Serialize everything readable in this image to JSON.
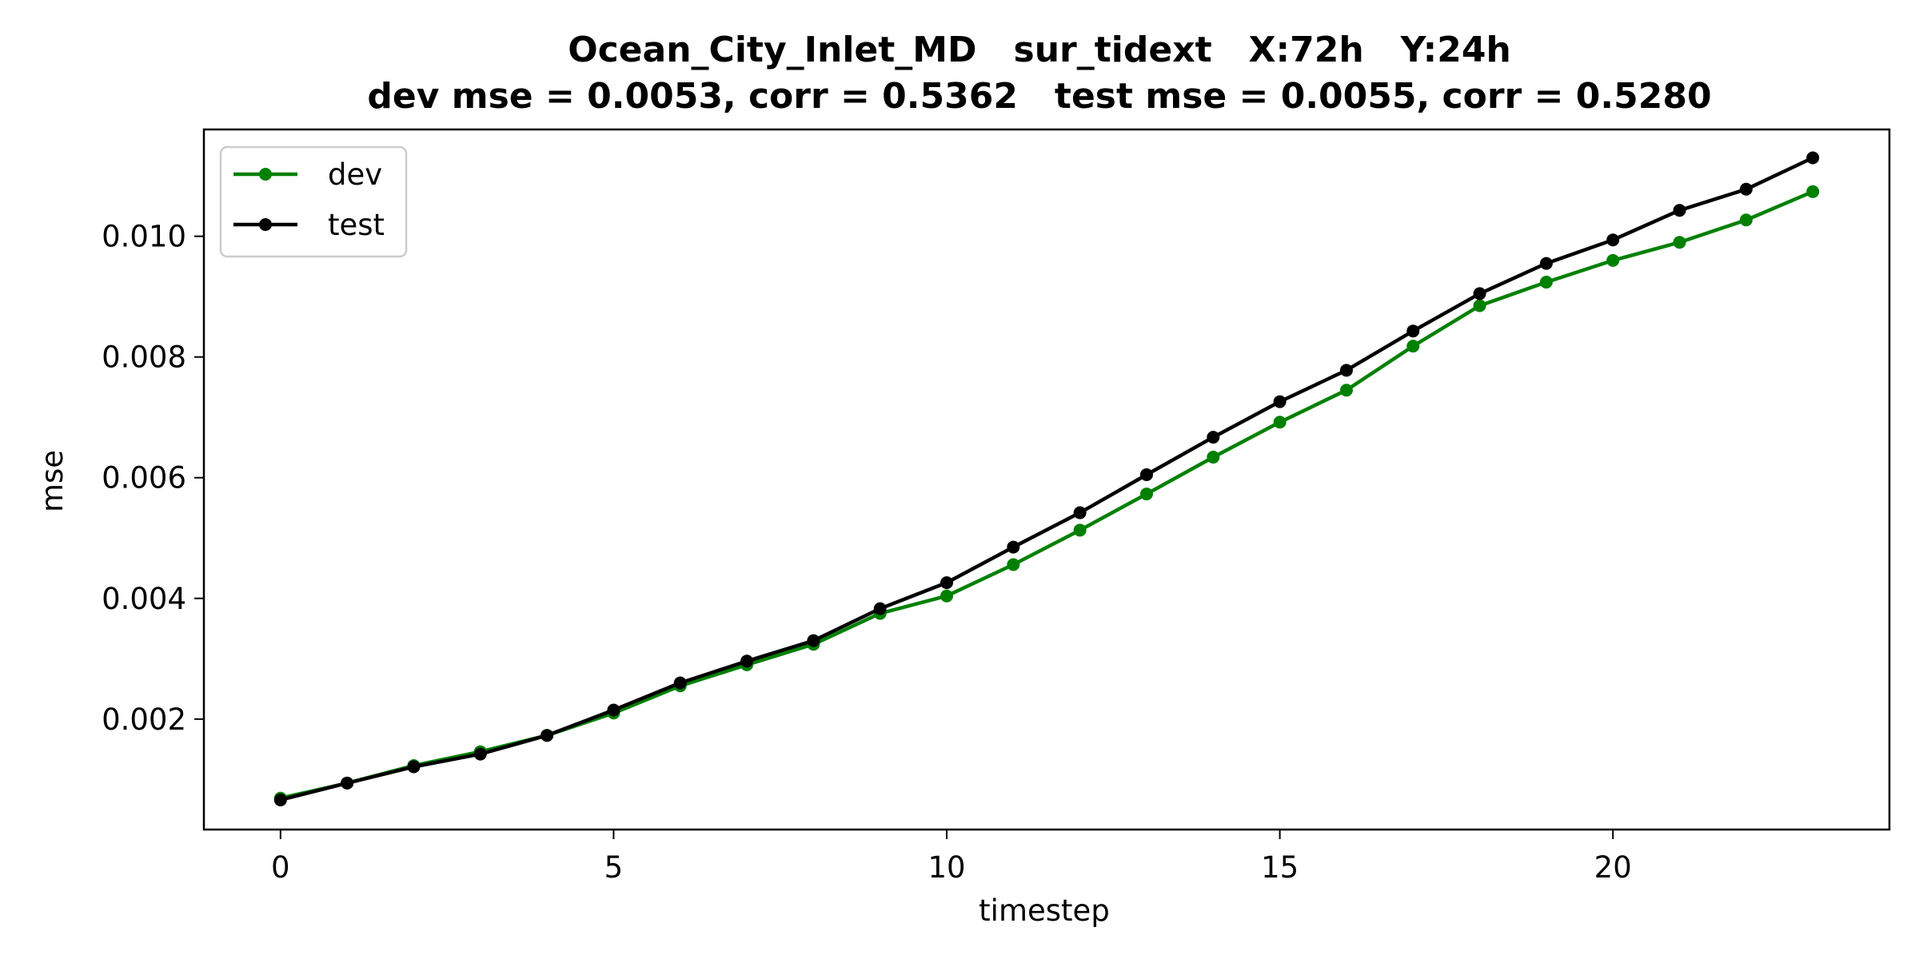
{
  "chart_data": {
    "type": "line",
    "title_line1": "Ocean_City_Inlet_MD   sur_tidext   X:72h   Y:24h",
    "title_line2": "dev mse = 0.0053, corr = 0.5362   test mse = 0.0055, corr = 0.5280",
    "xlabel": "timestep",
    "ylabel": "mse",
    "xlim": [
      -1.15,
      24.15
    ],
    "ylim": [
      0.00017,
      0.01177
    ],
    "xticks": [
      0,
      5,
      10,
      15,
      20
    ],
    "yticks": [
      0.002,
      0.004,
      0.006,
      0.008,
      0.01
    ],
    "ytick_labels": [
      "0.002",
      "0.004",
      "0.006",
      "0.008",
      "0.010"
    ],
    "legend_position": "upper-left",
    "grid": false,
    "x": [
      0,
      1,
      2,
      3,
      4,
      5,
      6,
      7,
      8,
      9,
      10,
      11,
      12,
      13,
      14,
      15,
      16,
      17,
      18,
      19,
      20,
      21,
      22,
      23
    ],
    "series": [
      {
        "name": "dev",
        "color": "#008000",
        "values": [
          0.00069,
          0.00094,
          0.00123,
          0.00146,
          0.00173,
          0.0021,
          0.00255,
          0.0029,
          0.00324,
          0.00375,
          0.00404,
          0.00456,
          0.00513,
          0.00573,
          0.00634,
          0.00692,
          0.00745,
          0.00818,
          0.00885,
          0.00924,
          0.0096,
          0.0099,
          0.01027,
          0.01074
        ]
      },
      {
        "name": "test",
        "color": "#000000",
        "values": [
          0.00066,
          0.00094,
          0.00121,
          0.00142,
          0.00173,
          0.00215,
          0.0026,
          0.00296,
          0.0033,
          0.00383,
          0.00426,
          0.00485,
          0.00542,
          0.00605,
          0.00667,
          0.00726,
          0.00778,
          0.00843,
          0.00905,
          0.00955,
          0.00994,
          0.01043,
          0.01078,
          0.0113
        ]
      }
    ]
  }
}
